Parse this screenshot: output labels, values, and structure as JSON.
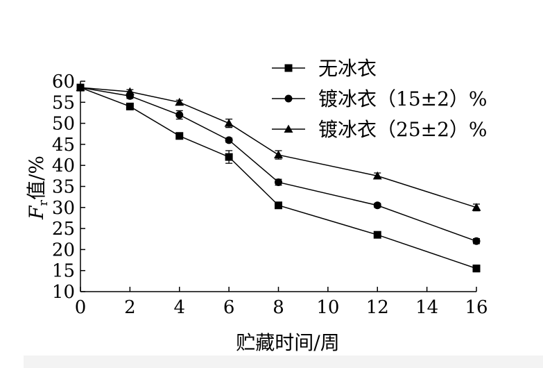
{
  "chart_data": {
    "type": "line",
    "xlabel": "贮藏时间/周",
    "ylabel_main": "F",
    "ylabel_sub": "r",
    "ylabel_rest": "值/%",
    "xlim": [
      0,
      16
    ],
    "ylim": [
      10,
      60
    ],
    "xticks": [
      0,
      2,
      4,
      6,
      8,
      10,
      12,
      14,
      16
    ],
    "yticks": [
      10,
      15,
      20,
      25,
      30,
      35,
      40,
      45,
      50,
      55,
      60
    ],
    "grid": false,
    "legend_position": "top-right",
    "series": [
      {
        "name": "无冰衣",
        "marker": "square",
        "points": [
          {
            "x": 0,
            "y": 58.5,
            "err": 0.5
          },
          {
            "x": 2,
            "y": 54.0,
            "err": 0.5
          },
          {
            "x": 4,
            "y": 47.0,
            "err": 0.5
          },
          {
            "x": 6,
            "y": 42.0,
            "err": 1.5
          },
          {
            "x": 8,
            "y": 30.5,
            "err": 0.5
          },
          {
            "x": 12,
            "y": 23.5,
            "err": 0.5
          },
          {
            "x": 16,
            "y": 15.5,
            "err": 0.8
          }
        ]
      },
      {
        "name": "镀冰衣（15±2）%",
        "marker": "circle",
        "points": [
          {
            "x": 0,
            "y": 58.5,
            "err": 0.5
          },
          {
            "x": 2,
            "y": 56.5,
            "err": 0.6
          },
          {
            "x": 4,
            "y": 52.0,
            "err": 1.0
          },
          {
            "x": 6,
            "y": 46.0,
            "err": 0.5
          },
          {
            "x": 8,
            "y": 36.0,
            "err": 0.7
          },
          {
            "x": 12,
            "y": 30.5,
            "err": 0.5
          },
          {
            "x": 16,
            "y": 22.0,
            "err": 0.6
          }
        ]
      },
      {
        "name": "镀冰衣（25±2）%",
        "marker": "triangle",
        "points": [
          {
            "x": 0,
            "y": 58.5,
            "err": 0.5
          },
          {
            "x": 2,
            "y": 57.5,
            "err": 0.5
          },
          {
            "x": 4,
            "y": 55.0,
            "err": 0.5
          },
          {
            "x": 6,
            "y": 50.0,
            "err": 1.0
          },
          {
            "x": 8,
            "y": 42.5,
            "err": 1.0
          },
          {
            "x": 12,
            "y": 37.5,
            "err": 0.7
          },
          {
            "x": 16,
            "y": 30.0,
            "err": 0.8
          }
        ]
      }
    ]
  }
}
